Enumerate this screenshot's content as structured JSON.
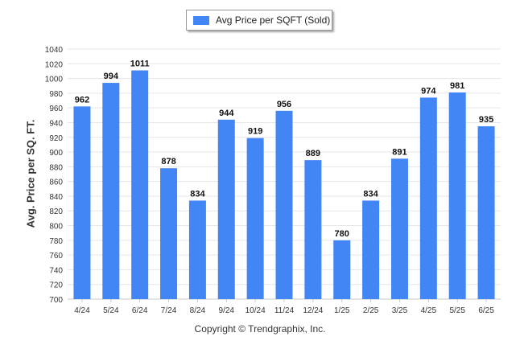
{
  "chart_data": {
    "type": "bar",
    "categories": [
      "4/24",
      "5/24",
      "6/24",
      "7/24",
      "8/24",
      "9/24",
      "10/24",
      "11/24",
      "12/24",
      "1/25",
      "2/25",
      "3/25",
      "4/25",
      "5/25",
      "6/25"
    ],
    "series": [
      {
        "name": "Avg Price per SQFT (Sold)",
        "values": [
          962,
          994,
          1011,
          878,
          834,
          944,
          919,
          956,
          889,
          780,
          834,
          891,
          974,
          981,
          935
        ],
        "color": "#4285f4"
      }
    ],
    "ylabel": "Avg. Price per SQ. FT.",
    "xlabel": "",
    "ylim": [
      700,
      1040
    ],
    "yticks": [
      700,
      720,
      740,
      760,
      780,
      800,
      820,
      840,
      860,
      880,
      900,
      920,
      940,
      960,
      980,
      1000,
      1020,
      1040
    ],
    "grid": true,
    "legend_position": "top-center"
  },
  "legend": {
    "label": "Avg Price per SQFT (Sold)"
  },
  "footer": {
    "copyright": "Copyright © Trendgraphix, Inc."
  }
}
